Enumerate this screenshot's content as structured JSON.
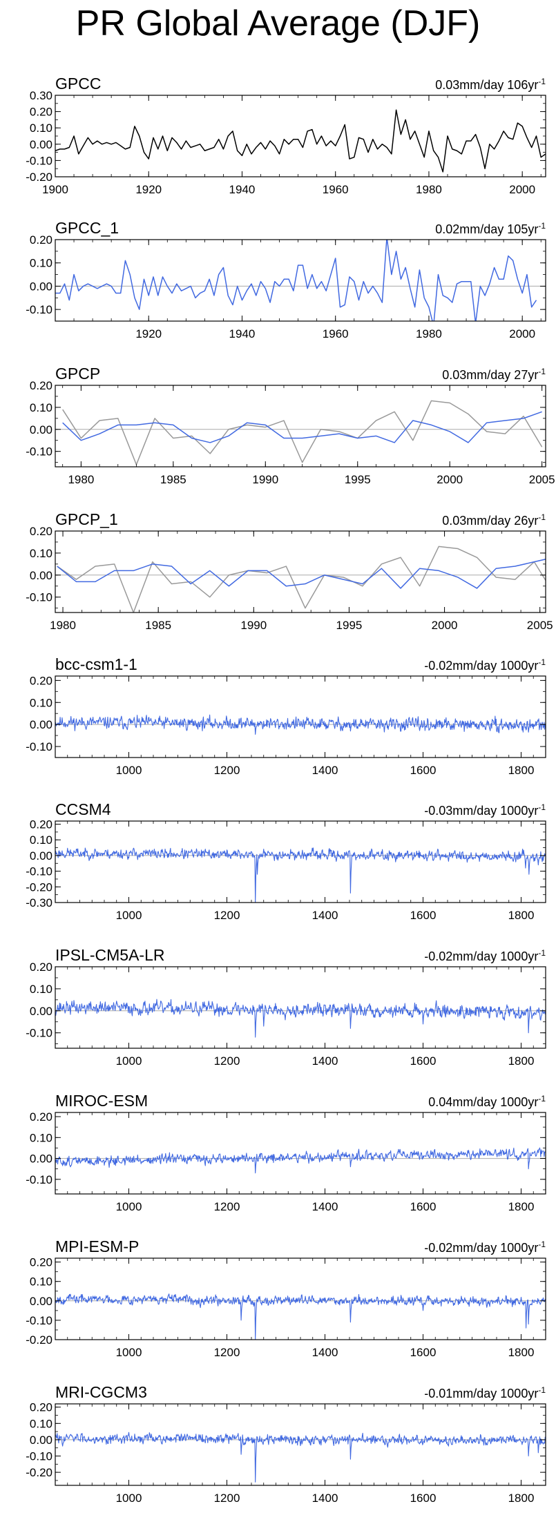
{
  "page_title": "PR Global Average (DJF)",
  "colors": {
    "model_line": "#4169e1",
    "obs_line": "#000000",
    "ref_line": "#999999",
    "zero_line": "#aaaaaa"
  },
  "chart_data": [
    {
      "type": "line",
      "title": "GPCC",
      "trend_label": "0.03mm/day 106yr",
      "trend_sup": "-1",
      "xlim": [
        1900,
        2005
      ],
      "ylim": [
        -0.2,
        0.3
      ],
      "xticks": [
        1900,
        1920,
        1940,
        1960,
        1980,
        2000
      ],
      "show_first_xtick": true,
      "yticks": [
        -0.2,
        -0.1,
        0.0,
        0.1,
        0.2,
        0.3
      ],
      "ytick_labels": [
        "-0.20",
        "-0.10",
        "0.00",
        "0.10",
        "0.20",
        "0.30"
      ],
      "zero_line": false,
      "series": [
        {
          "x_start": 1900,
          "x_step": 1,
          "color": "#000000",
          "values": [
            -0.04,
            -0.03,
            -0.03,
            -0.02,
            0.05,
            -0.06,
            -0.01,
            0.04,
            0.0,
            0.02,
            0.0,
            0.01,
            0.0,
            0.01,
            -0.01,
            -0.03,
            -0.02,
            0.11,
            0.05,
            -0.05,
            -0.09,
            0.04,
            -0.03,
            0.05,
            -0.04,
            0.04,
            0.01,
            -0.03,
            0.02,
            -0.02,
            -0.01,
            0.0,
            -0.04,
            -0.03,
            -0.02,
            0.03,
            -0.03,
            0.05,
            0.08,
            -0.04,
            -0.07,
            0.0,
            -0.06,
            -0.02,
            0.01,
            -0.03,
            0.02,
            -0.01,
            -0.06,
            0.03,
            0.0,
            0.03,
            0.03,
            -0.02,
            0.08,
            0.09,
            0.0,
            0.05,
            -0.01,
            0.02,
            -0.01,
            0.05,
            0.12,
            -0.09,
            -0.08,
            0.04,
            0.03,
            -0.05,
            0.03,
            -0.03,
            0.0,
            -0.02,
            -0.06,
            0.21,
            0.06,
            0.15,
            0.03,
            0.08,
            0.0,
            -0.08,
            0.08,
            -0.04,
            -0.08,
            -0.17,
            0.05,
            -0.03,
            -0.04,
            -0.06,
            0.02,
            0.02,
            0.06,
            -0.02,
            -0.15,
            0.0,
            -0.03,
            0.02,
            0.08,
            0.04,
            0.03,
            0.13,
            0.11,
            0.04,
            -0.02,
            0.05,
            -0.08,
            -0.06
          ]
        }
      ]
    },
    {
      "type": "line",
      "title": "GPCC_1",
      "trend_label": "0.02mm/day 105yr",
      "trend_sup": "-1",
      "xlim": [
        1900,
        2005
      ],
      "ylim": [
        -0.15,
        0.2
      ],
      "xticks": [
        1920,
        1940,
        1960,
        1980,
        2000
      ],
      "show_first_xtick": true,
      "yticks": [
        -0.1,
        0.0,
        0.1,
        0.2
      ],
      "ytick_labels": [
        "-0.10",
        "0.00",
        "0.10",
        "0.20"
      ],
      "zero_line": true,
      "series": [
        {
          "x_start": 1900,
          "x_step": 1,
          "color": "#4169e1",
          "values": [
            -0.03,
            -0.03,
            0.01,
            -0.06,
            0.05,
            -0.02,
            0.0,
            0.01,
            0.0,
            -0.01,
            0.0,
            0.01,
            0.0,
            -0.03,
            -0.03,
            0.11,
            0.05,
            -0.05,
            -0.1,
            0.03,
            -0.04,
            0.04,
            -0.04,
            0.04,
            0.0,
            -0.03,
            0.01,
            -0.02,
            -0.01,
            0.0,
            -0.05,
            -0.03,
            -0.02,
            0.03,
            -0.04,
            0.05,
            0.08,
            -0.04,
            -0.08,
            0.0,
            -0.06,
            -0.02,
            0.01,
            -0.04,
            0.02,
            -0.01,
            -0.07,
            0.02,
            0.0,
            0.03,
            0.03,
            -0.02,
            0.09,
            0.09,
            -0.01,
            0.05,
            -0.01,
            0.02,
            -0.02,
            0.05,
            0.12,
            -0.09,
            -0.08,
            0.04,
            0.02,
            -0.06,
            0.02,
            -0.03,
            0.0,
            -0.03,
            -0.07,
            0.21,
            0.05,
            0.15,
            0.03,
            0.08,
            -0.01,
            -0.09,
            0.07,
            -0.05,
            -0.09,
            -0.17,
            0.05,
            -0.04,
            -0.05,
            -0.07,
            0.01,
            0.02,
            0.02,
            0.02,
            -0.16,
            0.0,
            -0.04,
            0.01,
            0.08,
            0.03,
            0.03,
            0.13,
            0.11,
            0.03,
            -0.03,
            0.05,
            -0.09,
            -0.06
          ]
        }
      ]
    },
    {
      "type": "line",
      "title": "GPCP",
      "trend_label": "0.03mm/day 27yr",
      "trend_sup": "-1",
      "xlim": [
        1978.6,
        2005.2
      ],
      "ylim": [
        -0.17,
        0.2
      ],
      "xticks": [
        1980,
        1985,
        1990,
        1995,
        2000,
        2005
      ],
      "show_first_xtick": true,
      "yticks": [
        -0.1,
        0.0,
        0.1,
        0.2
      ],
      "ytick_labels": [
        "-0.10",
        "0.00",
        "0.10",
        "0.20"
      ],
      "zero_line": true,
      "series": [
        {
          "x_start": 1979,
          "x_step": 1,
          "color": "#999999",
          "values": [
            0.09,
            -0.04,
            0.04,
            0.05,
            -0.16,
            0.05,
            -0.04,
            -0.03,
            -0.11,
            0.0,
            0.02,
            0.01,
            0.04,
            -0.15,
            0.0,
            -0.01,
            -0.04,
            0.04,
            0.08,
            -0.05,
            0.13,
            0.12,
            0.07,
            -0.01,
            -0.02,
            0.06,
            -0.08
          ]
        },
        {
          "x_start": 1979,
          "x_step": 1,
          "color": "#4169e1",
          "values": [
            0.03,
            -0.05,
            -0.02,
            0.02,
            0.02,
            0.03,
            0.02,
            -0.04,
            -0.06,
            -0.03,
            0.03,
            0.02,
            -0.04,
            -0.04,
            -0.03,
            -0.02,
            -0.04,
            -0.03,
            -0.06,
            0.04,
            0.02,
            -0.01,
            -0.06,
            0.03,
            0.04,
            0.05,
            0.08
          ]
        }
      ]
    },
    {
      "type": "line",
      "title": "GPCP_1",
      "trend_label": "0.03mm/day 26yr",
      "trend_sup": "-1",
      "xlim": [
        1979.6,
        2005.3
      ],
      "ylim": [
        -0.17,
        0.2
      ],
      "xticks": [
        1980,
        1985,
        1990,
        1995,
        2000,
        2005
      ],
      "show_first_xtick": true,
      "yticks": [
        -0.1,
        0.0,
        0.1,
        0.2
      ],
      "ytick_labels": [
        "-0.10",
        "0.00",
        "0.10",
        "0.20"
      ],
      "zero_line": true,
      "series": [
        {
          "x_start": 1979.7,
          "x_step": 1,
          "color": "#999999",
          "values": [
            0.04,
            -0.02,
            0.04,
            0.05,
            -0.17,
            0.06,
            -0.04,
            -0.03,
            -0.1,
            0.0,
            0.02,
            0.01,
            0.04,
            -0.15,
            0.0,
            -0.01,
            -0.05,
            0.05,
            0.08,
            -0.05,
            0.13,
            0.12,
            0.08,
            -0.01,
            -0.02,
            0.06,
            -0.08
          ]
        },
        {
          "x_start": 1979.7,
          "x_step": 1,
          "color": "#4169e1",
          "values": [
            0.04,
            -0.03,
            -0.03,
            0.02,
            0.02,
            0.05,
            0.04,
            -0.04,
            0.02,
            -0.05,
            0.02,
            0.02,
            -0.05,
            -0.04,
            0.0,
            -0.02,
            -0.04,
            0.03,
            -0.06,
            0.03,
            0.02,
            -0.01,
            -0.06,
            0.03,
            0.04,
            0.06,
            0.08
          ]
        }
      ]
    },
    {
      "type": "line",
      "title": "bcc-csm1-1",
      "trend_label": "-0.02mm/day 1000yr",
      "trend_sup": "-1",
      "xlim": [
        850,
        1850
      ],
      "ylim": [
        -0.15,
        0.22
      ],
      "xticks": [
        1000,
        1200,
        1400,
        1600,
        1800
      ],
      "show_first_xtick": false,
      "yticks": [
        -0.1,
        0.0,
        0.1,
        0.2
      ],
      "ytick_labels": [
        "-0.10",
        "0.00",
        "0.10",
        "0.20"
      ],
      "zero_line": true,
      "series": [
        {
          "model": true,
          "x_start": 850,
          "x_step": 1,
          "count": 1001,
          "color": "#4169e1",
          "trend_start": 0.01,
          "trend_end": -0.005,
          "noise": 0.013,
          "seed": 11,
          "spikes": [
            [
              1258,
              -0.045
            ],
            [
              1452,
              -0.03
            ],
            [
              1815,
              -0.035
            ]
          ]
        }
      ]
    },
    {
      "type": "line",
      "title": "CCSM4",
      "trend_label": "-0.03mm/day 1000yr",
      "trend_sup": "-1",
      "xlim": [
        850,
        1850
      ],
      "ylim": [
        -0.3,
        0.22
      ],
      "xticks": [
        1000,
        1200,
        1400,
        1600,
        1800
      ],
      "show_first_xtick": false,
      "yticks": [
        -0.3,
        -0.2,
        -0.1,
        0.0,
        0.1,
        0.2
      ],
      "ytick_labels": [
        "-0.30",
        "-0.20",
        "-0.10",
        "0.00",
        "0.10",
        "0.20"
      ],
      "zero_line": true,
      "series": [
        {
          "model": true,
          "x_start": 850,
          "x_step": 1,
          "count": 1001,
          "color": "#4169e1",
          "trend_start": 0.015,
          "trend_end": -0.005,
          "noise": 0.015,
          "seed": 23,
          "spikes": [
            [
              1258,
              -0.3
            ],
            [
              1262,
              -0.12
            ],
            [
              1452,
              -0.24
            ],
            [
              1809,
              -0.08
            ],
            [
              1816,
              -0.12
            ],
            [
              1835,
              -0.06
            ]
          ]
        }
      ]
    },
    {
      "type": "line",
      "title": "IPSL-CM5A-LR",
      "trend_label": "-0.02mm/day 1000yr",
      "trend_sup": "-1",
      "xlim": [
        850,
        1850
      ],
      "ylim": [
        -0.17,
        0.2
      ],
      "xticks": [
        1000,
        1200,
        1400,
        1600,
        1800
      ],
      "show_first_xtick": false,
      "yticks": [
        -0.1,
        0.0,
        0.1,
        0.2
      ],
      "ytick_labels": [
        "-0.10",
        "0.00",
        "0.10",
        "0.20"
      ],
      "zero_line": true,
      "series": [
        {
          "model": true,
          "x_start": 850,
          "x_step": 1,
          "count": 1001,
          "color": "#4169e1",
          "trend_start": 0.015,
          "trend_end": -0.005,
          "noise": 0.014,
          "seed": 37,
          "spikes": [
            [
              1258,
              -0.12
            ],
            [
              1275,
              -0.07
            ],
            [
              1452,
              -0.08
            ],
            [
              1600,
              -0.06
            ],
            [
              1815,
              -0.1
            ]
          ]
        }
      ]
    },
    {
      "type": "line",
      "title": "MIROC-ESM",
      "trend_label": "0.04mm/day 1000yr",
      "trend_sup": "-1",
      "xlim": [
        850,
        1850
      ],
      "ylim": [
        -0.17,
        0.22
      ],
      "xticks": [
        1000,
        1200,
        1400,
        1600,
        1800
      ],
      "show_first_xtick": false,
      "yticks": [
        -0.1,
        0.0,
        0.1,
        0.2
      ],
      "ytick_labels": [
        "-0.10",
        "0.00",
        "0.10",
        "0.20"
      ],
      "zero_line": true,
      "series": [
        {
          "model": true,
          "x_start": 850,
          "x_step": 1,
          "count": 1001,
          "color": "#4169e1",
          "trend_start": -0.015,
          "trend_end": 0.025,
          "noise": 0.011,
          "seed": 51,
          "spikes": [
            [
              1258,
              -0.07
            ],
            [
              1452,
              -0.04
            ],
            [
              1815,
              -0.05
            ]
          ]
        }
      ]
    },
    {
      "type": "line",
      "title": "MPI-ESM-P",
      "trend_label": "-0.02mm/day 1000yr",
      "trend_sup": "-1",
      "xlim": [
        850,
        1850
      ],
      "ylim": [
        -0.2,
        0.22
      ],
      "xticks": [
        1000,
        1200,
        1400,
        1600,
        1800
      ],
      "show_first_xtick": false,
      "yticks": [
        -0.2,
        -0.1,
        0.0,
        0.1,
        0.2
      ],
      "ytick_labels": [
        "-0.20",
        "-0.10",
        "0.00",
        "0.10",
        "0.20"
      ],
      "zero_line": true,
      "series": [
        {
          "model": true,
          "x_start": 850,
          "x_step": 1,
          "count": 1001,
          "color": "#4169e1",
          "trend_start": 0.01,
          "trend_end": -0.005,
          "noise": 0.011,
          "seed": 67,
          "spikes": [
            [
              1229,
              -0.1
            ],
            [
              1258,
              -0.2
            ],
            [
              1452,
              -0.11
            ],
            [
              1600,
              -0.05
            ],
            [
              1810,
              -0.14
            ],
            [
              1815,
              -0.12
            ]
          ]
        }
      ]
    },
    {
      "type": "line",
      "title": "MRI-CGCM3",
      "trend_label": "-0.01mm/day 1000yr",
      "trend_sup": "-1",
      "xlim": [
        850,
        1850
      ],
      "ylim": [
        -0.28,
        0.22
      ],
      "xticks": [
        1000,
        1200,
        1400,
        1600,
        1800
      ],
      "show_first_xtick": false,
      "yticks": [
        -0.2,
        -0.1,
        0.0,
        0.1,
        0.2
      ],
      "ytick_labels": [
        "-0.20",
        "-0.10",
        "0.00",
        "0.10",
        "0.20"
      ],
      "zero_line": true,
      "series": [
        {
          "model": true,
          "x_start": 850,
          "x_step": 1,
          "count": 1001,
          "color": "#4169e1",
          "trend_start": 0.01,
          "trend_end": -0.005,
          "noise": 0.014,
          "seed": 83,
          "spikes": [
            [
              1229,
              -0.09
            ],
            [
              1258,
              -0.26
            ],
            [
              1452,
              -0.12
            ],
            [
              1815,
              -0.1
            ],
            [
              1835,
              -0.08
            ]
          ]
        }
      ]
    }
  ]
}
